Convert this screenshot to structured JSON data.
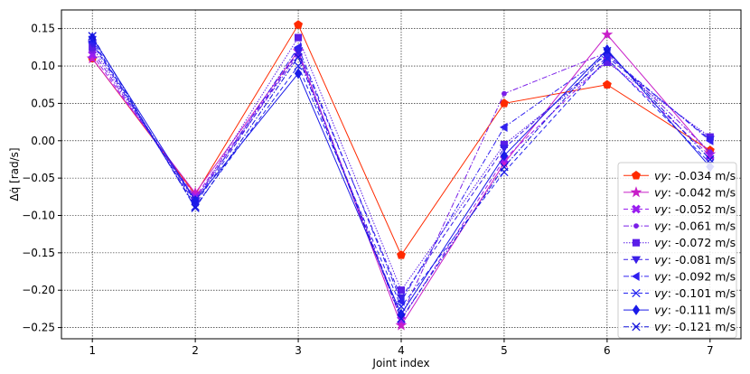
{
  "chart_data": {
    "type": "line",
    "xlabel": "Joint index",
    "ylabel": "Δq̇ [rad/s]",
    "x": [
      1,
      2,
      3,
      4,
      5,
      6,
      7
    ],
    "xlim": [
      0.7,
      7.3
    ],
    "ylim": [
      -0.265,
      0.175
    ],
    "xticks": [
      "1",
      "2",
      "3",
      "4",
      "5",
      "6",
      "7"
    ],
    "yticks": [
      "0.15",
      "0.10",
      "0.05",
      "0.00",
      "−0.05",
      "−0.10",
      "−0.15",
      "−0.20",
      "−0.25"
    ],
    "ytick_values": [
      0.15,
      0.1,
      0.05,
      0.0,
      -0.05,
      -0.1,
      -0.15,
      -0.2,
      -0.25
    ],
    "grid": true,
    "legend_position": "lower-right",
    "series": [
      {
        "name": "vy: -0.034 m/s",
        "prefix": "vy",
        "suffix": ": -0.034 m/s",
        "color": "#ff2a00",
        "marker": "pentagon",
        "dash": "solid",
        "values": [
          0.11,
          -0.072,
          0.155,
          -0.153,
          0.05,
          0.075,
          -0.013
        ]
      },
      {
        "name": "vy: -0.042 m/s",
        "prefix": "vy",
        "suffix": ": -0.042 m/s",
        "color": "#c81ec8",
        "marker": "star",
        "dash": "solid",
        "values": [
          0.11,
          -0.07,
          0.12,
          -0.247,
          -0.03,
          0.142,
          -0.018
        ]
      },
      {
        "name": "vy: -0.052 m/s",
        "prefix": "vy",
        "suffix": ": -0.052 m/s",
        "color": "#9a1ef0",
        "marker": "x-filled",
        "dash": "dashed",
        "values": [
          0.115,
          -0.075,
          0.118,
          -0.24,
          -0.025,
          0.108,
          -0.02
        ]
      },
      {
        "name": "vy: -0.061 m/s",
        "prefix": "vy",
        "suffix": ": -0.061 m/s",
        "color": "#7a1ee8",
        "marker": "point",
        "dash": "dashdot",
        "values": [
          0.12,
          -0.078,
          0.115,
          -0.235,
          0.063,
          0.118,
          -0.015
        ]
      },
      {
        "name": "vy: -0.072 m/s",
        "prefix": "vy",
        "suffix": ": -0.072 m/s",
        "color": "#5a1ee8",
        "marker": "square",
        "dash": "dotted",
        "values": [
          0.125,
          -0.08,
          0.138,
          -0.2,
          -0.005,
          0.105,
          0.005
        ]
      },
      {
        "name": "vy: -0.081 m/s",
        "prefix": "vy",
        "suffix": ": -0.081 m/s",
        "color": "#3a1ee8",
        "marker": "triangle-down",
        "dash": "dashed",
        "values": [
          0.13,
          -0.085,
          0.12,
          -0.21,
          -0.01,
          0.112,
          0.002
        ]
      },
      {
        "name": "vy: -0.092 m/s",
        "prefix": "vy",
        "suffix": ": -0.092 m/s",
        "color": "#3020f0",
        "marker": "triangle-left",
        "dash": "dashdot",
        "values": [
          0.132,
          -0.082,
          0.125,
          -0.215,
          0.018,
          0.115,
          0.0
        ]
      },
      {
        "name": "vy: -0.101 m/s",
        "prefix": "vy",
        "suffix": ": -0.101 m/s",
        "color": "#2222f0",
        "marker": "x",
        "dash": "dashed",
        "values": [
          0.135,
          -0.088,
          0.1,
          -0.222,
          -0.042,
          0.11,
          -0.03
        ]
      },
      {
        "name": "vy: -0.111 m/s",
        "prefix": "vy",
        "suffix": ": -0.111 m/s",
        "color": "#1a1ae8",
        "marker": "diamond",
        "dash": "solid",
        "values": [
          0.138,
          -0.08,
          0.09,
          -0.232,
          -0.02,
          0.122,
          -0.035
        ]
      },
      {
        "name": "vy: -0.121 m/s",
        "prefix": "vy",
        "suffix": ": -0.121 m/s",
        "color": "#1414dc",
        "marker": "x",
        "dash": "dashdot",
        "values": [
          0.14,
          -0.09,
          0.112,
          -0.238,
          -0.035,
          0.12,
          -0.025
        ]
      }
    ]
  }
}
